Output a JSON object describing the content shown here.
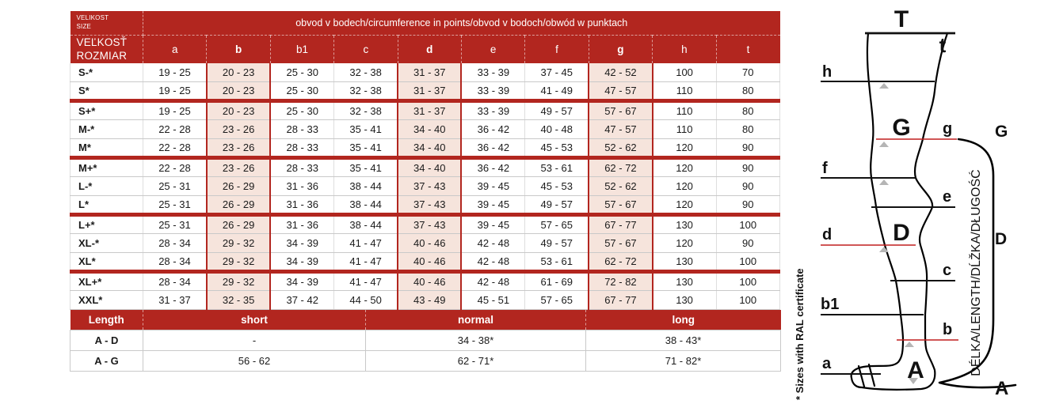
{
  "colors": {
    "accent_red": "#b2261f",
    "highlight_pink": "#f6e4dc",
    "diagram_red": "#c01f1f",
    "triangle_gray": "#b5b5b5"
  },
  "main_table": {
    "corner_row1": {
      "line1": "VELIKOST",
      "line2": "SIZE"
    },
    "corner_row2": {
      "line1": "VEĽKOSŤ",
      "line2": "ROZMIAR"
    },
    "span_header": "obvod v bodech/circumference in points/obvod v bodoch/obwód w punktach",
    "columns": [
      "a",
      "b",
      "b1",
      "c",
      "d",
      "e",
      "f",
      "g",
      "h",
      "t"
    ],
    "highlight_columns": [
      "b",
      "d",
      "g"
    ],
    "rows": [
      {
        "size": "S-*",
        "sep": false,
        "values": [
          "19 - 25",
          "20 - 23",
          "25 - 30",
          "32 - 38",
          "31 - 37",
          "33 - 39",
          "37 - 45",
          "42 - 52",
          "100",
          "70"
        ]
      },
      {
        "size": "S*",
        "sep": false,
        "values": [
          "19 - 25",
          "20 - 23",
          "25 - 30",
          "32 - 38",
          "31 - 37",
          "33 - 39",
          "41 - 49",
          "47 - 57",
          "110",
          "80"
        ]
      },
      {
        "size": "S+*",
        "sep": true,
        "values": [
          "19 - 25",
          "20 - 23",
          "25 - 30",
          "32 - 38",
          "31 - 37",
          "33 - 39",
          "49 - 57",
          "57 - 67",
          "110",
          "80"
        ]
      },
      {
        "size": "M-*",
        "sep": false,
        "values": [
          "22 - 28",
          "23 - 26",
          "28 - 33",
          "35 - 41",
          "34 - 40",
          "36 - 42",
          "40 - 48",
          "47 - 57",
          "110",
          "80"
        ]
      },
      {
        "size": "M*",
        "sep": false,
        "values": [
          "22 - 28",
          "23 - 26",
          "28 - 33",
          "35 - 41",
          "34 - 40",
          "36 - 42",
          "45 - 53",
          "52 - 62",
          "120",
          "90"
        ]
      },
      {
        "size": "M+*",
        "sep": true,
        "values": [
          "22 - 28",
          "23 - 26",
          "28 - 33",
          "35 - 41",
          "34 - 40",
          "36 - 42",
          "53 - 61",
          "62 - 72",
          "120",
          "90"
        ]
      },
      {
        "size": "L-*",
        "sep": false,
        "values": [
          "25 - 31",
          "26 - 29",
          "31 - 36",
          "38 - 44",
          "37 - 43",
          "39 - 45",
          "45 - 53",
          "52 - 62",
          "120",
          "90"
        ]
      },
      {
        "size": "L*",
        "sep": false,
        "values": [
          "25 - 31",
          "26 - 29",
          "31 - 36",
          "38 - 44",
          "37 - 43",
          "39 - 45",
          "49 - 57",
          "57 - 67",
          "120",
          "90"
        ]
      },
      {
        "size": "L+*",
        "sep": true,
        "values": [
          "25 - 31",
          "26 - 29",
          "31 - 36",
          "38 - 44",
          "37 - 43",
          "39 - 45",
          "57 - 65",
          "67 - 77",
          "130",
          "100"
        ]
      },
      {
        "size": "XL-*",
        "sep": false,
        "values": [
          "28 - 34",
          "29 - 32",
          "34 - 39",
          "41 - 47",
          "40 - 46",
          "42 - 48",
          "49 - 57",
          "57 - 67",
          "120",
          "90"
        ]
      },
      {
        "size": "XL*",
        "sep": false,
        "values": [
          "28 - 34",
          "29 - 32",
          "34 - 39",
          "41 - 47",
          "40 - 46",
          "42 - 48",
          "53 - 61",
          "62 - 72",
          "130",
          "100"
        ]
      },
      {
        "size": "XL+*",
        "sep": true,
        "values": [
          "28 - 34",
          "29 - 32",
          "34 - 39",
          "41 - 47",
          "40 - 46",
          "42 - 48",
          "61 - 69",
          "72 - 82",
          "130",
          "100"
        ]
      },
      {
        "size": "XXL*",
        "sep": false,
        "values": [
          "31 - 37",
          "32 - 35",
          "37 - 42",
          "44 - 50",
          "43 - 49",
          "45 - 51",
          "57 - 65",
          "67 - 77",
          "130",
          "100"
        ]
      }
    ]
  },
  "length_table": {
    "headers": {
      "label": "Length",
      "short": "short",
      "normal": "normal",
      "long": "long"
    },
    "rows": [
      {
        "label": "A - D",
        "short": "-",
        "normal": "34 - 38*",
        "long": "38 - 43*"
      },
      {
        "label": "A - G",
        "short": "56 - 62",
        "normal": "62 - 71*",
        "long": "71 - 82*"
      }
    ]
  },
  "footnote": "* Sizes with RAL certificate",
  "diagram": {
    "labels": {
      "T": "T",
      "t": "t",
      "h": "h",
      "G": "G",
      "g": "g",
      "f": "f",
      "e": "e",
      "D": "D",
      "d": "d",
      "c": "c",
      "b1": "b1",
      "b": "b",
      "a": "a",
      "A": "A"
    },
    "bracket_labels": {
      "top": "G",
      "middle": "D",
      "bottom": "A"
    },
    "length_text": "DÉLKA/LENGTH/DĹŽKA/DŁUGOŚĆ"
  }
}
